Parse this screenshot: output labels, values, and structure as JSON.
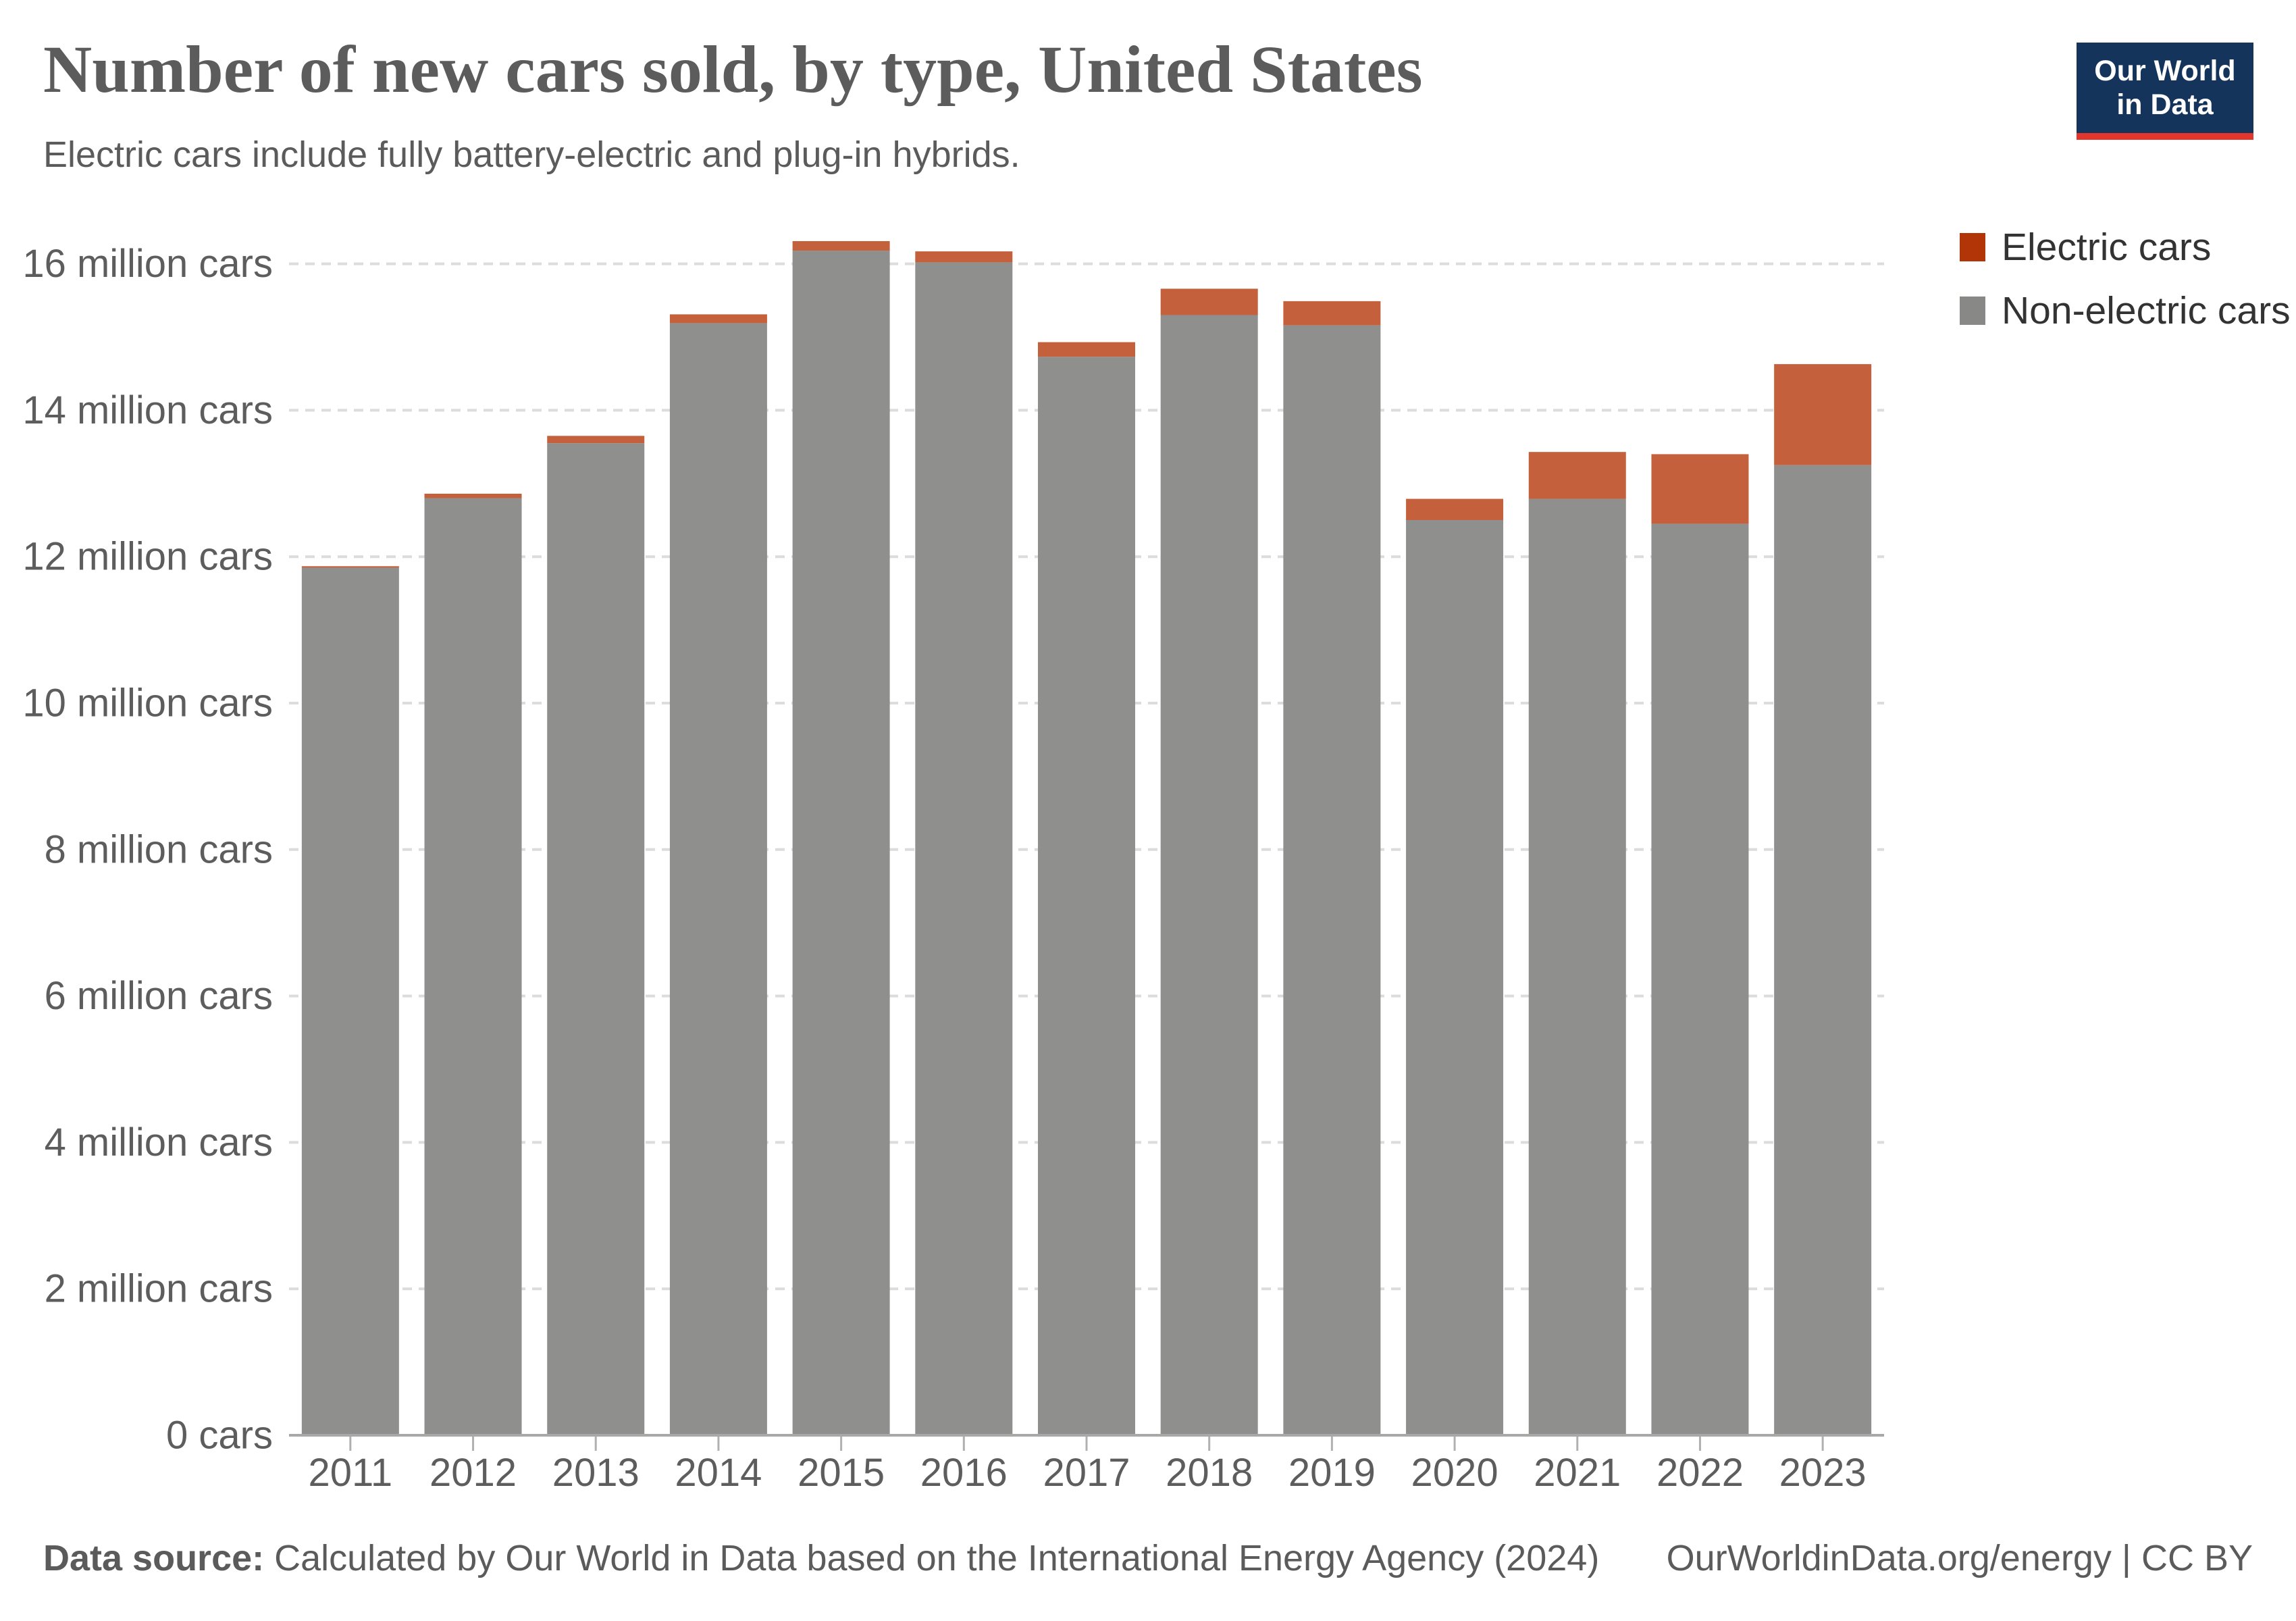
{
  "header": {
    "title": "Number of new cars sold, by type, United States",
    "subtitle": "Electric cars include fully battery-electric and plug-in hybrids."
  },
  "logo": {
    "line1": "Our World",
    "line2": "in Data",
    "bg_color": "#14345c",
    "accent_color": "#e0362c"
  },
  "legend": {
    "items": [
      {
        "label": "Electric cars",
        "color": "#b13507"
      },
      {
        "label": "Non-electric cars",
        "color": "#888887"
      }
    ]
  },
  "footer": {
    "source_label": "Data source:",
    "source_text": " Calculated by Our World in Data based on the International Energy Agency (2024)",
    "right_text": "OurWorldinData.org/energy | CC BY"
  },
  "chart_data": {
    "type": "bar",
    "stacked": true,
    "title": "Number of new cars sold, by type, United States",
    "xlabel": "",
    "ylabel": "million cars",
    "ylim": [
      0,
      16.6
    ],
    "grid": "dashed-horizontal",
    "legend_position": "right",
    "categories": [
      "2011",
      "2012",
      "2013",
      "2014",
      "2015",
      "2016",
      "2017",
      "2018",
      "2019",
      "2020",
      "2021",
      "2022",
      "2023"
    ],
    "series": [
      {
        "name": "Electric cars",
        "unit": "million cars",
        "color": "#c4613c",
        "values": [
          0.02,
          0.06,
          0.1,
          0.12,
          0.13,
          0.15,
          0.2,
          0.36,
          0.33,
          0.29,
          0.64,
          0.95,
          1.38
        ]
      },
      {
        "name": "Non-electric cars",
        "unit": "million cars",
        "color": "#8f8f8d",
        "values": [
          11.85,
          12.8,
          13.55,
          15.19,
          16.18,
          16.02,
          14.73,
          15.3,
          15.16,
          12.5,
          12.79,
          12.45,
          13.25
        ]
      }
    ],
    "totals": [
      11.87,
      12.86,
      13.65,
      15.31,
      16.31,
      16.17,
      14.93,
      15.66,
      15.49,
      12.79,
      13.43,
      13.4,
      14.63
    ],
    "y_ticks": [
      {
        "value": 16,
        "label": "16 million cars"
      },
      {
        "value": 14,
        "label": "14 million cars"
      },
      {
        "value": 12,
        "label": "12 million cars"
      },
      {
        "value": 10,
        "label": "10 million cars"
      },
      {
        "value": 8,
        "label": "8 million cars"
      },
      {
        "value": 6,
        "label": "6 million cars"
      },
      {
        "value": 4,
        "label": "4 million cars"
      },
      {
        "value": 2,
        "label": "2 million cars"
      },
      {
        "value": 0,
        "label": "0 cars"
      }
    ],
    "colors": {
      "grid_line": "#dcdcdc",
      "axis_line": "#a8a8a8",
      "tick_mark": "#b0b0b0",
      "tick_label": "#5d5d5d"
    }
  }
}
